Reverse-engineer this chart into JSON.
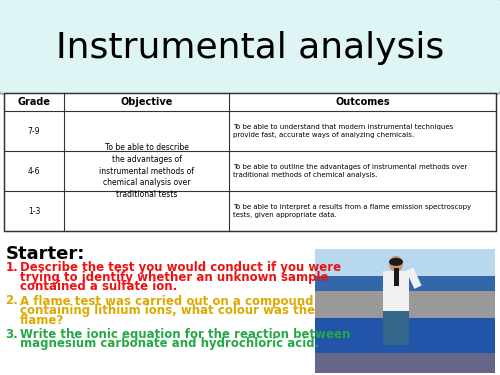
{
  "title": "Instrumental analysis",
  "title_bg": "#dff4f4",
  "bg_color": "#ffffff",
  "table_grades": [
    "7-9",
    "4-6",
    "1-3"
  ],
  "table_objective": "To be able to describe\nthe advantages of\ninstrumental methods of\nchemical analysis over\ntraditional tests",
  "table_outcomes": [
    "To be able to understand that modern instrumental techniques\nprovide fast, accurate ways of analyzing chemicals.",
    "To be able to outline the advantages of instrumental methods over\ntraditional methods of chemical analysis.",
    "To be able to interpret a results from a flame emission spectroscopy\ntests, given appropriate data."
  ],
  "starter_label": "Starter:",
  "questions": [
    {
      "num": "1.",
      "text": "Describe the test you would conduct if you were\ntrying to identify whether an unknown sample\ncontained a sulfate ion.",
      "color": "#ee1111"
    },
    {
      "num": "2.",
      "text": "A flame test was carried out on a compound\ncontaining lithium ions, what colour was the\nflame?",
      "color": "#ddaa00"
    },
    {
      "num": "3.",
      "text": "Write the ionic equation for the reaction between\nmagnesium carbonate and hydrochloric acid.",
      "color": "#22aa44"
    }
  ],
  "title_fontsize": 26,
  "table_header_fontsize": 7,
  "table_body_fontsize": 5.5,
  "outcome_fontsize": 5.0,
  "starter_fontsize": 13,
  "question_fontsize": 8.5
}
